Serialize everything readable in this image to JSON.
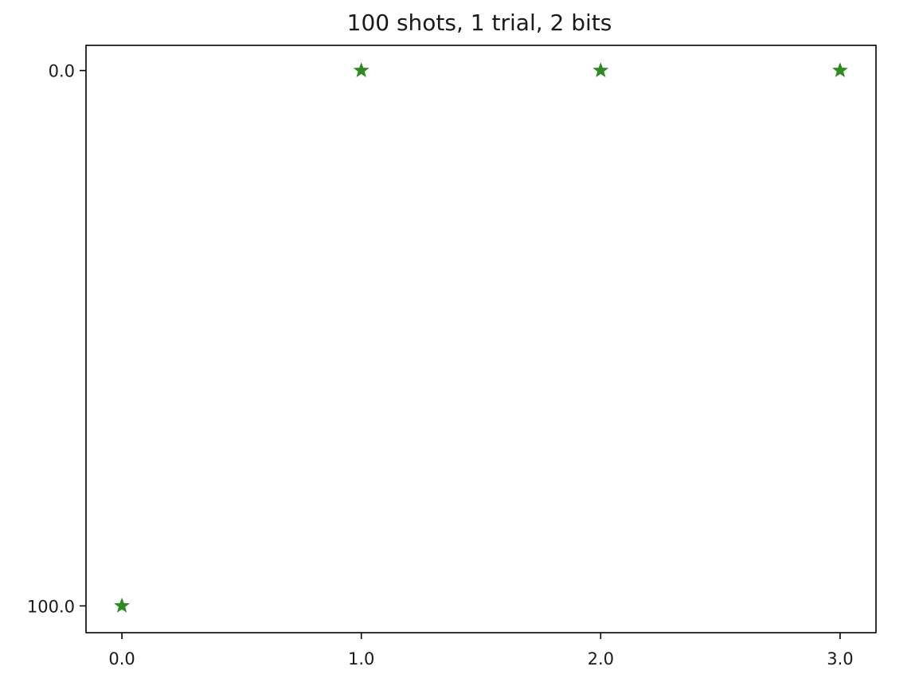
{
  "chart_data": {
    "type": "scatter",
    "title": "100 shots, 1 trial, 2 bits",
    "xlabel": "",
    "ylabel": "",
    "y_axis_inverted": true,
    "grid": false,
    "marker": "star",
    "color": "#2e8b22",
    "x_ticks": [
      0.0,
      1.0,
      2.0,
      3.0
    ],
    "x_tick_labels": [
      "0.0",
      "1.0",
      "2.0",
      "3.0"
    ],
    "y_ticks": [
      0.0,
      100.0
    ],
    "y_tick_labels": [
      "0.0",
      "100.0"
    ],
    "xlim": [
      -0.15,
      3.15
    ],
    "ylim": [
      -4.7,
      105.0
    ],
    "series": [
      {
        "x": [
          0,
          1,
          2,
          3
        ],
        "y": [
          100,
          0,
          0,
          0
        ]
      }
    ]
  }
}
